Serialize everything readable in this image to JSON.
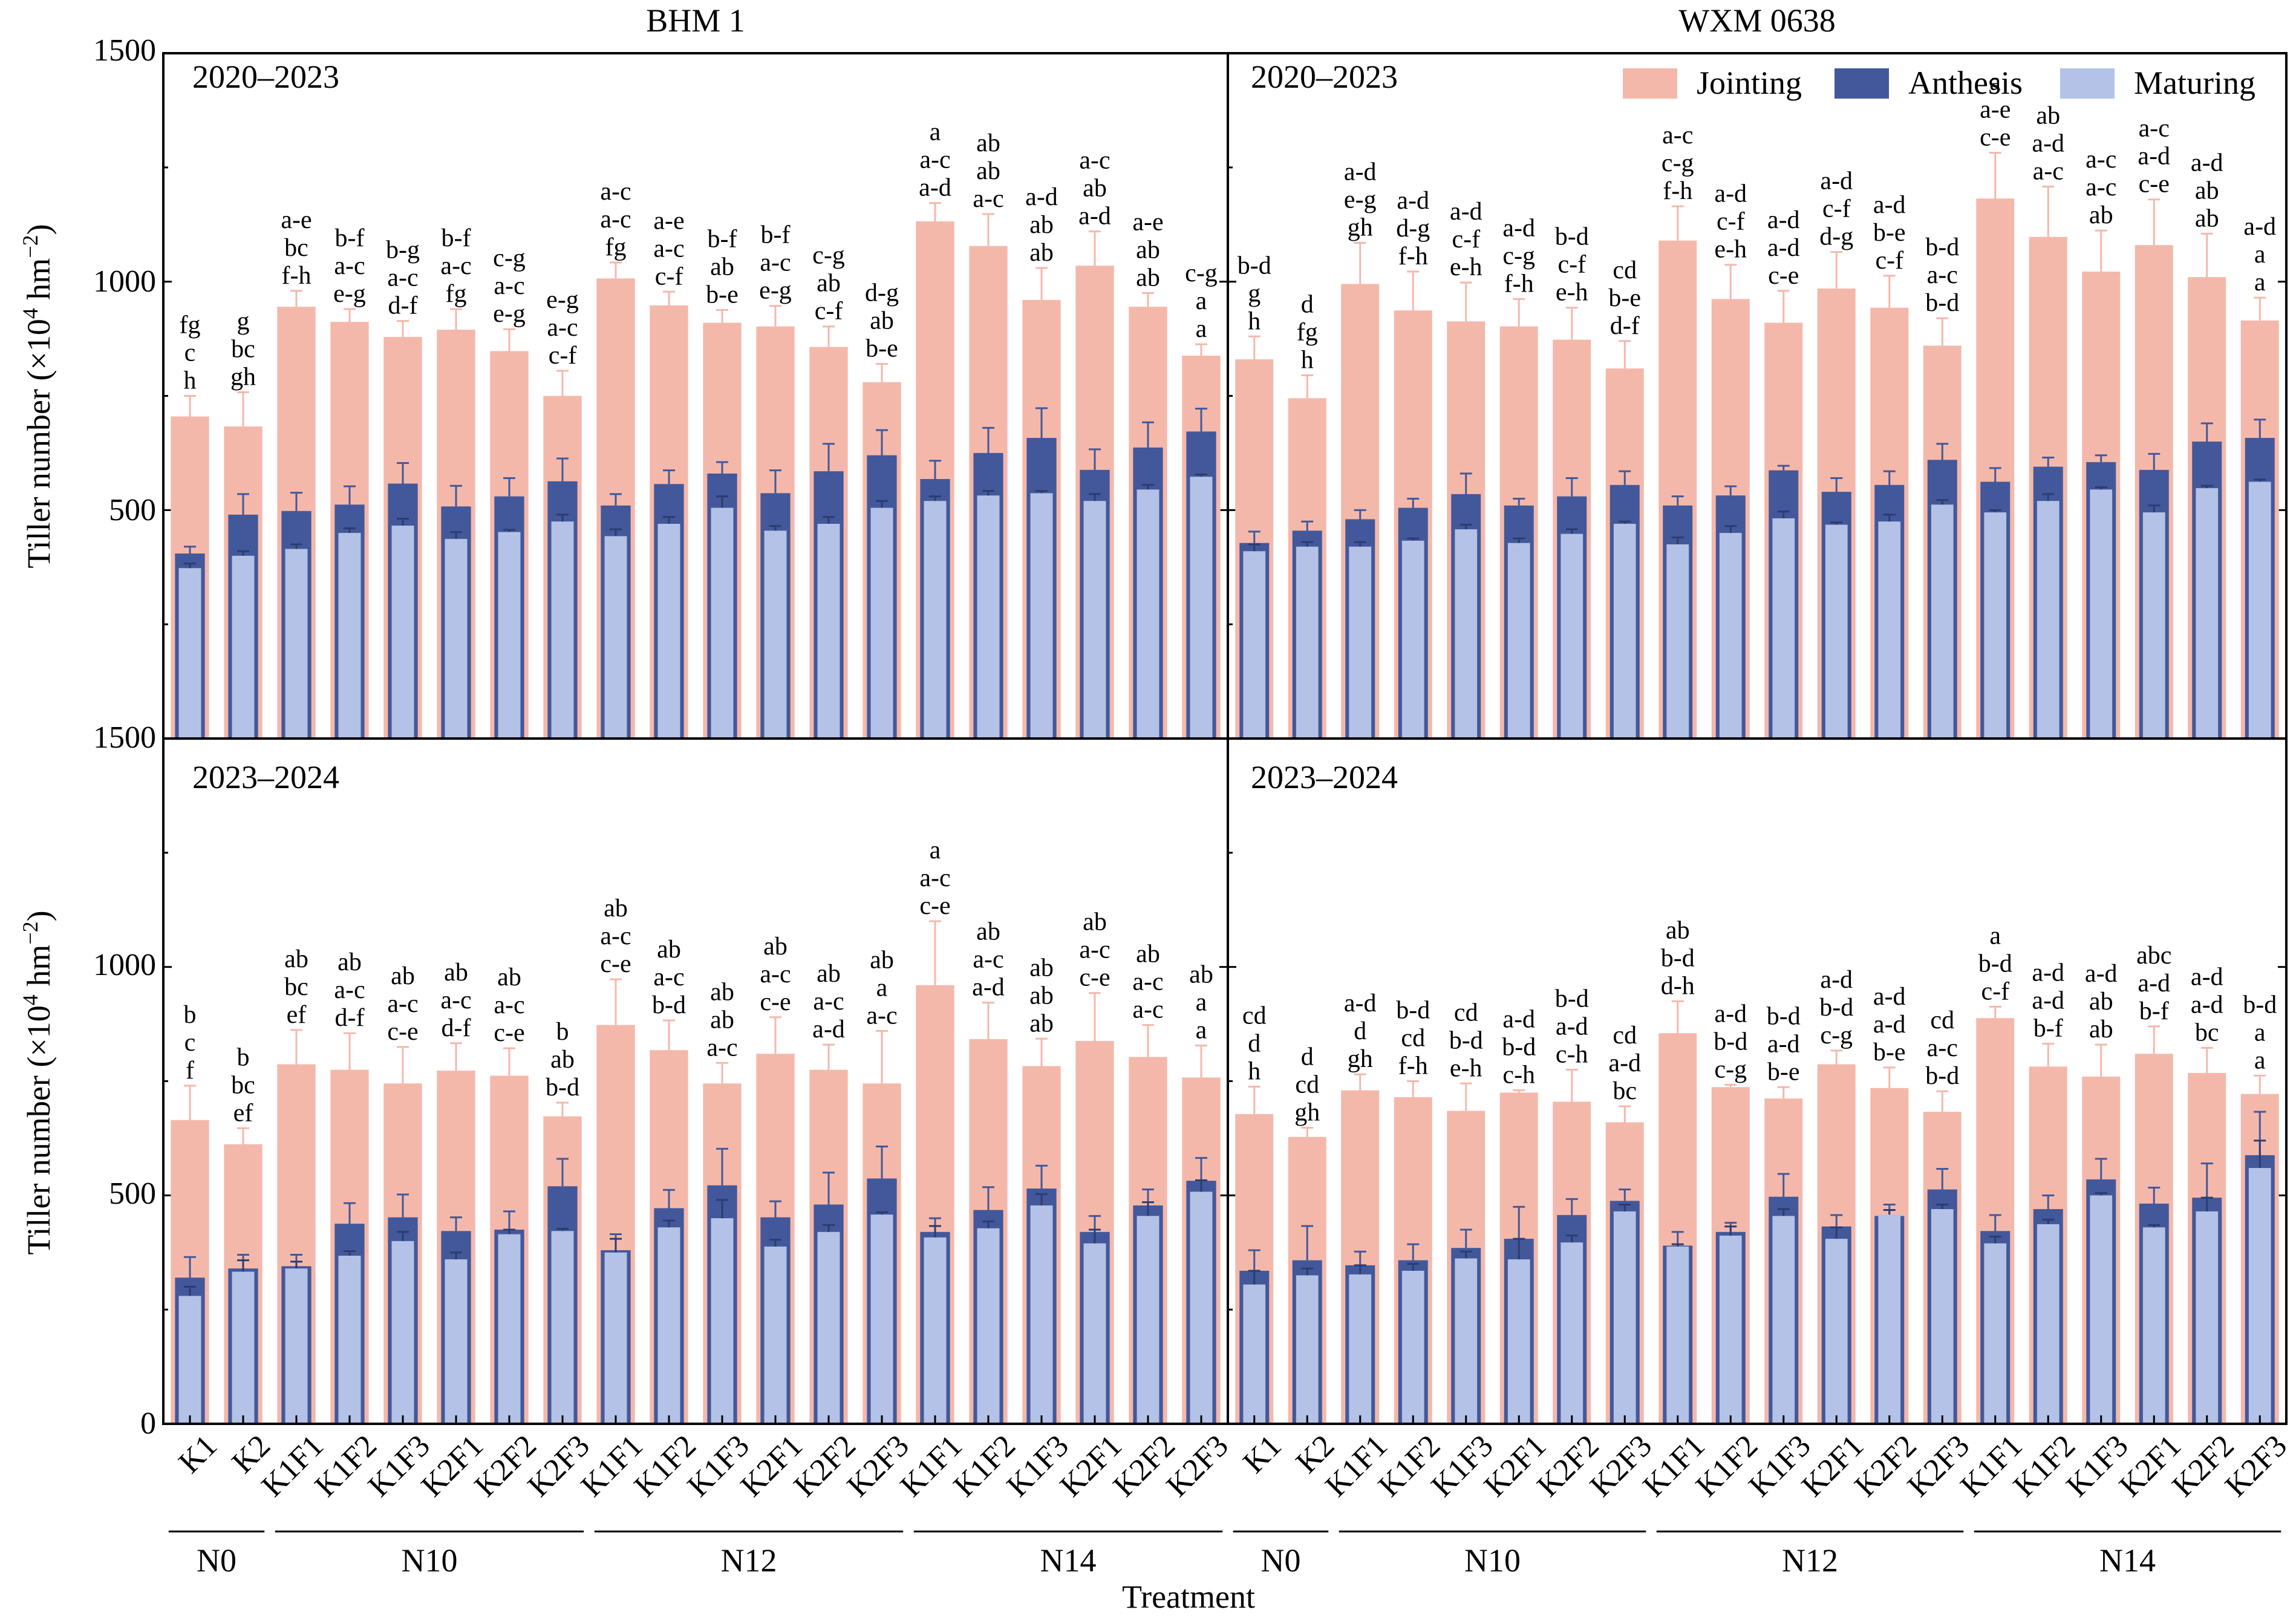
{
  "figure": {
    "columns": [
      "BHM 1",
      "WXM 0638"
    ],
    "ylabel": "Tiller number (×10",
    "ylabel_exp": "4",
    "ylabel_unit": " hm",
    "ylabel_unit_exp": "−2",
    "ylabel_close": ")",
    "xlabel": "Treatment",
    "legend": [
      {
        "name": "Jointing",
        "color": "#f4b8ab"
      },
      {
        "name": "Anthesis",
        "color": "#42589a"
      },
      {
        "name": "Maturing",
        "color": "#b3c2e6"
      }
    ],
    "groups": [
      {
        "label": "N0",
        "span": [
          0,
          1
        ]
      },
      {
        "label": "N10",
        "span": [
          2,
          7
        ]
      },
      {
        "label": "N12",
        "span": [
          8,
          13
        ]
      },
      {
        "label": "N14",
        "span": [
          14,
          19
        ]
      }
    ],
    "top_panel_ytick_labels": [
      "1500",
      "500",
      "1000",
      "1500"
    ],
    "bottom_panel_ytick_labels": [
      "0",
      "500",
      "1000"
    ]
  },
  "chart_data": [
    {
      "type": "bar",
      "title": "2020–2023",
      "column": "BHM 1",
      "ylim": [
        0,
        1500
      ],
      "categories": [
        "K1",
        "K2",
        "K1F1",
        "K1F2",
        "K1F3",
        "K2F1",
        "K2F2",
        "K2F3",
        "K1F1",
        "K1F2",
        "K1F3",
        "K2F1",
        "K2F2",
        "K2F3",
        "K1F1",
        "K1F2",
        "K1F3",
        "K2F1",
        "K2F2",
        "K2F3"
      ],
      "series": [
        {
          "name": "Jointing",
          "values": [
            705,
            683,
            945,
            912,
            879,
            895,
            848,
            750,
            1007,
            948,
            910,
            902,
            857,
            780,
            1132,
            1078,
            960,
            1035,
            945,
            838
          ],
          "errors": [
            45,
            75,
            35,
            28,
            35,
            45,
            48,
            55,
            35,
            30,
            28,
            45,
            45,
            40,
            40,
            70,
            70,
            75,
            30,
            25
          ]
        },
        {
          "name": "Anthesis",
          "values": [
            405,
            490,
            498,
            512,
            558,
            508,
            530,
            563,
            510,
            557,
            580,
            537,
            585,
            620,
            568,
            625,
            658,
            588,
            637,
            672
          ],
          "errors": [
            15,
            45,
            40,
            40,
            45,
            45,
            40,
            50,
            25,
            30,
            25,
            50,
            60,
            55,
            40,
            55,
            65,
            45,
            55,
            50
          ]
        },
        {
          "name": "Maturing",
          "values": [
            373,
            400,
            415,
            450,
            466,
            437,
            452,
            475,
            443,
            470,
            505,
            455,
            470,
            505,
            520,
            532,
            537,
            520,
            545,
            573
          ],
          "errors": [
            10,
            10,
            10,
            10,
            15,
            15,
            5,
            15,
            15,
            15,
            25,
            10,
            15,
            15,
            10,
            10,
            5,
            15,
            10,
            5
          ]
        }
      ],
      "letters": [
        [
          "fg",
          "c",
          "h"
        ],
        [
          "g",
          "bc",
          "gh"
        ],
        [
          "a-e",
          "bc",
          "f-h"
        ],
        [
          "b-f",
          "a-c",
          "e-g"
        ],
        [
          "b-g",
          "a-c",
          "d-f"
        ],
        [
          "b-f",
          "a-c",
          "fg"
        ],
        [
          "c-g",
          "a-c",
          "e-g"
        ],
        [
          "e-g",
          "a-c",
          "c-f"
        ],
        [
          "a-c",
          "a-c",
          "fg"
        ],
        [
          "a-e",
          "a-c",
          "c-f"
        ],
        [
          "b-f",
          "ab",
          "b-e"
        ],
        [
          "b-f",
          "a-c",
          "e-g"
        ],
        [
          "c-g",
          "ab",
          "c-f"
        ],
        [
          "d-g",
          "ab",
          "b-e"
        ],
        [
          "a",
          "a-c",
          "a-d"
        ],
        [
          "ab",
          "ab",
          "a-c"
        ],
        [
          "a-d",
          "ab",
          "ab"
        ],
        [
          "a-c",
          "ab",
          "a-d"
        ],
        [
          "a-e",
          "ab",
          "ab"
        ],
        [
          "c-g",
          "a",
          "a"
        ]
      ]
    },
    {
      "type": "bar",
      "title": "2020–2023",
      "column": "WXM 0638",
      "ylim": [
        0,
        1500
      ],
      "categories": [
        "K1",
        "K2",
        "K1F1",
        "K1F2",
        "K1F3",
        "K2F1",
        "K2F2",
        "K2F3",
        "K1F1",
        "K1F2",
        "K1F3",
        "K2F1",
        "K2F2",
        "K2F3",
        "K1F1",
        "K1F2",
        "K1F3",
        "K2F1",
        "K2F2",
        "K2F3"
      ],
      "series": [
        {
          "name": "Jointing",
          "values": [
            830,
            745,
            995,
            937,
            913,
            902,
            873,
            810,
            1090,
            962,
            910,
            985,
            943,
            860,
            1182,
            1098,
            1022,
            1080,
            1010,
            915
          ],
          "errors": [
            50,
            50,
            90,
            85,
            85,
            60,
            70,
            60,
            75,
            75,
            70,
            80,
            70,
            60,
            100,
            110,
            90,
            100,
            95,
            50
          ]
        },
        {
          "name": "Anthesis",
          "values": [
            428,
            455,
            480,
            505,
            535,
            510,
            530,
            555,
            510,
            532,
            587,
            540,
            555,
            610,
            562,
            595,
            605,
            588,
            650,
            658
          ],
          "errors": [
            25,
            20,
            20,
            20,
            45,
            15,
            40,
            30,
            20,
            20,
            10,
            30,
            30,
            35,
            30,
            20,
            15,
            35,
            40,
            40
          ]
        },
        {
          "name": "Maturing",
          "values": [
            410,
            420,
            420,
            433,
            458,
            428,
            448,
            470,
            425,
            450,
            482,
            468,
            475,
            512,
            495,
            520,
            545,
            495,
            548,
            562
          ],
          "errors": [
            15,
            10,
            10,
            5,
            10,
            10,
            10,
            5,
            15,
            15,
            15,
            5,
            15,
            10,
            5,
            15,
            5,
            15,
            5,
            5
          ]
        }
      ],
      "letters": [
        [
          "b-d",
          "g",
          "h"
        ],
        [
          "d",
          "fg",
          "h"
        ],
        [
          "a-d",
          "e-g",
          "gh"
        ],
        [
          "a-d",
          "d-g",
          "f-h"
        ],
        [
          "a-d",
          "c-f",
          "e-h"
        ],
        [
          "a-d",
          "c-g",
          "f-h"
        ],
        [
          "b-d",
          "c-f",
          "e-h"
        ],
        [
          "cd",
          "b-e",
          "d-f"
        ],
        [
          "a-c",
          "c-g",
          "f-h"
        ],
        [
          "a-d",
          "c-f",
          "e-h"
        ],
        [
          "a-d",
          "a-d",
          "c-e"
        ],
        [
          "a-d",
          "c-f",
          "d-g"
        ],
        [
          "a-d",
          "b-e",
          "c-f"
        ],
        [
          "b-d",
          "a-c",
          "b-d"
        ],
        [
          "a",
          "a-e",
          "c-e"
        ],
        [
          "ab",
          "a-d",
          "a-c"
        ],
        [
          "a-c",
          "a-c",
          "ab"
        ],
        [
          "a-c",
          "a-d",
          "c-e"
        ],
        [
          "a-d",
          "ab",
          "ab"
        ],
        [
          "a-d",
          "a",
          "a"
        ]
      ]
    },
    {
      "type": "bar",
      "title": "2023–2024",
      "column": "BHM 1",
      "ylim": [
        0,
        1500
      ],
      "categories": [
        "K1",
        "K2",
        "K1F1",
        "K1F2",
        "K1F3",
        "K2F1",
        "K2F2",
        "K2F3",
        "K1F1",
        "K1F2",
        "K1F3",
        "K2F1",
        "K2F2",
        "K2F3",
        "K1F1",
        "K1F2",
        "K1F3",
        "K2F1",
        "K2F2",
        "K2F3"
      ],
      "series": [
        {
          "name": "Jointing",
          "values": [
            665,
            612,
            787,
            775,
            745,
            773,
            762,
            673,
            873,
            818,
            745,
            810,
            775,
            745,
            960,
            842,
            783,
            838,
            803,
            758
          ],
          "errors": [
            75,
            35,
            75,
            80,
            80,
            60,
            60,
            30,
            100,
            65,
            45,
            80,
            55,
            115,
            140,
            80,
            60,
            105,
            70,
            70
          ]
        },
        {
          "name": "Anthesis",
          "values": [
            320,
            340,
            345,
            438,
            452,
            422,
            425,
            520,
            380,
            472,
            522,
            452,
            480,
            537,
            420,
            468,
            515,
            420,
            478,
            532
          ],
          "errors": [
            45,
            30,
            25,
            45,
            50,
            30,
            40,
            60,
            35,
            40,
            80,
            35,
            70,
            70,
            30,
            50,
            50,
            35,
            35,
            50
          ]
        },
        {
          "name": "Maturing",
          "values": [
            280,
            333,
            340,
            368,
            400,
            360,
            415,
            422,
            375,
            430,
            450,
            388,
            420,
            458,
            408,
            428,
            478,
            395,
            455,
            508
          ],
          "errors": [
            20,
            25,
            15,
            10,
            20,
            15,
            10,
            5,
            30,
            15,
            40,
            15,
            15,
            5,
            25,
            15,
            25,
            30,
            30,
            25
          ]
        }
      ],
      "letters": [
        [
          "b",
          "c",
          "f"
        ],
        [
          "b",
          "bc",
          "ef"
        ],
        [
          "ab",
          "bc",
          "ef"
        ],
        [
          "ab",
          "a-c",
          "d-f"
        ],
        [
          "ab",
          "a-c",
          "c-e"
        ],
        [
          "ab",
          "a-c",
          "d-f"
        ],
        [
          "ab",
          "a-c",
          "c-e"
        ],
        [
          "b",
          "ab",
          "b-d"
        ],
        [
          "ab",
          "a-c",
          "c-e"
        ],
        [
          "ab",
          "a-c",
          "b-d"
        ],
        [
          "ab",
          "ab",
          "a-c"
        ],
        [
          "ab",
          "a-c",
          "c-e"
        ],
        [
          "ab",
          "a-c",
          "a-d"
        ],
        [
          "ab",
          "a",
          "a-c"
        ],
        [
          "a",
          "a-c",
          "c-e"
        ],
        [
          "ab",
          "a-c",
          "a-d"
        ],
        [
          "ab",
          "ab",
          "ab"
        ],
        [
          "ab",
          "a-c",
          "c-e"
        ],
        [
          "ab",
          "a-c",
          "a-c"
        ],
        [
          "ab",
          "a",
          "a"
        ]
      ]
    },
    {
      "type": "bar",
      "title": "2023–2024",
      "column": "WXM 0638",
      "ylim": [
        0,
        1500
      ],
      "categories": [
        "K1",
        "K2",
        "K1F1",
        "K1F2",
        "K1F3",
        "K2F1",
        "K2F2",
        "K2F3",
        "K1F1",
        "K1F2",
        "K1F3",
        "K2F1",
        "K2F2",
        "K2F3",
        "K1F1",
        "K1F2",
        "K1F3",
        "K2F1",
        "K2F2",
        "K2F3"
      ],
      "series": [
        {
          "name": "Jointing",
          "values": [
            678,
            628,
            730,
            715,
            685,
            725,
            705,
            660,
            855,
            737,
            712,
            787,
            735,
            683,
            888,
            782,
            760,
            810,
            768,
            722
          ],
          "errors": [
            60,
            20,
            35,
            35,
            60,
            5,
            70,
            35,
            70,
            5,
            25,
            30,
            45,
            45,
            25,
            50,
            70,
            60,
            55,
            40
          ]
        },
        {
          "name": "Anthesis",
          "values": [
            335,
            358,
            347,
            358,
            385,
            405,
            457,
            488,
            390,
            420,
            497,
            432,
            455,
            513,
            422,
            470,
            535,
            482,
            495,
            588
          ],
          "errors": [
            45,
            75,
            30,
            35,
            40,
            70,
            35,
            25,
            30,
            20,
            50,
            25,
            25,
            45,
            35,
            30,
            45,
            35,
            75,
            95
          ]
        },
        {
          "name": "Maturing",
          "values": [
            305,
            325,
            327,
            335,
            362,
            360,
            397,
            465,
            388,
            412,
            455,
            405,
            458,
            470,
            395,
            437,
            500,
            430,
            465,
            560
          ],
          "errors": [
            30,
            15,
            20,
            15,
            15,
            45,
            15,
            15,
            5,
            20,
            15,
            25,
            10,
            10,
            15,
            10,
            5,
            5,
            30,
            60
          ]
        }
      ],
      "letters": [
        [
          "cd",
          "d",
          "h"
        ],
        [
          "d",
          "cd",
          "gh"
        ],
        [
          "a-d",
          "d",
          "gh"
        ],
        [
          "b-d",
          "cd",
          "f-h"
        ],
        [
          "cd",
          "b-d",
          "e-h"
        ],
        [
          "a-d",
          "b-d",
          "c-h"
        ],
        [
          "b-d",
          "a-d",
          "c-h"
        ],
        [
          "cd",
          "a-d",
          "bc"
        ],
        [
          "ab",
          "b-d",
          "d-h"
        ],
        [
          "a-d",
          "b-d",
          "c-g"
        ],
        [
          "b-d",
          "a-d",
          "b-e"
        ],
        [
          "a-d",
          "b-d",
          "c-g"
        ],
        [
          "a-d",
          "a-d",
          "b-e"
        ],
        [
          "cd",
          "a-c",
          "b-d"
        ],
        [
          "a",
          "b-d",
          "c-f"
        ],
        [
          "a-d",
          "a-d",
          "b-f"
        ],
        [
          "a-d",
          "ab",
          "ab"
        ],
        [
          "abc",
          "a-d",
          "b-f"
        ],
        [
          "a-d",
          "a-d",
          "bc"
        ],
        [
          "b-d",
          "a",
          "a"
        ]
      ]
    }
  ]
}
